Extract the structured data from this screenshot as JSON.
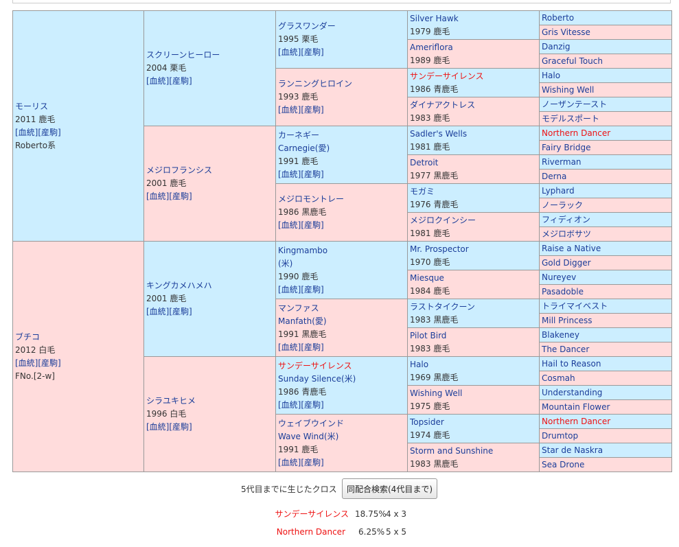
{
  "links": {
    "bloodline": "[血統]",
    "foal": "[産駒]"
  },
  "gen1": [
    {
      "name": "モーリス",
      "birth": "2011 鹿毛",
      "extra": "Roberto系",
      "sex": "m"
    },
    {
      "name": "ブチコ",
      "birth": "2012 白毛",
      "extra": "FNo.[2-w]",
      "sex": "f"
    }
  ],
  "gen2": [
    {
      "name": "スクリーンヒーロー",
      "birth": "2004 栗毛",
      "sex": "m"
    },
    {
      "name": "メジロフランシス",
      "birth": "2001 鹿毛",
      "sex": "f"
    },
    {
      "name": "キングカメハメハ",
      "birth": "2001 鹿毛",
      "sex": "m"
    },
    {
      "name": "シラユキヒメ",
      "birth": "1996 白毛",
      "sex": "f"
    }
  ],
  "gen3": [
    {
      "name": "グラスワンダー",
      "birth": "1995 栗毛",
      "sex": "m"
    },
    {
      "name": "ランニングヒロイン",
      "birth": "1993 鹿毛",
      "sex": "f"
    },
    {
      "name": "カーネギー",
      "name2": "Carnegie(愛)",
      "birth": "1991 鹿毛",
      "sex": "m"
    },
    {
      "name": "メジロモントレー",
      "birth": "1986 黒鹿毛",
      "sex": "f"
    },
    {
      "name": "Kingmambo",
      "name2": "(米)",
      "birth": "1990 鹿毛",
      "sex": "m"
    },
    {
      "name": "マンファス",
      "name2": "Manfath(愛)",
      "birth": "1991 黒鹿毛",
      "sex": "f"
    },
    {
      "name": "サンデーサイレンス",
      "name2": "Sunday Silence(米)",
      "birth": "1986 青鹿毛",
      "sex": "m",
      "cross": true
    },
    {
      "name": "ウェイブウインド",
      "name2": "Wave Wind(米)",
      "birth": "1991 鹿毛",
      "sex": "f"
    }
  ],
  "gen4": [
    {
      "name": "Silver Hawk",
      "birth": "1979 鹿毛",
      "sex": "m"
    },
    {
      "name": "Ameriflora",
      "birth": "1989 鹿毛",
      "sex": "f"
    },
    {
      "name": "サンデーサイレンス",
      "birth": "1986 青鹿毛",
      "sex": "m",
      "cross": true
    },
    {
      "name": "ダイナアクトレス",
      "birth": "1983 鹿毛",
      "sex": "f"
    },
    {
      "name": "Sadler's Wells",
      "birth": "1981 鹿毛",
      "sex": "m"
    },
    {
      "name": "Detroit",
      "birth": "1977 黒鹿毛",
      "sex": "f"
    },
    {
      "name": "モガミ",
      "birth": "1976 青鹿毛",
      "sex": "m"
    },
    {
      "name": "メジロクインシー",
      "birth": "1981 鹿毛",
      "sex": "f"
    },
    {
      "name": "Mr. Prospector",
      "birth": "1970 鹿毛",
      "sex": "m"
    },
    {
      "name": "Miesque",
      "birth": "1984 鹿毛",
      "sex": "f"
    },
    {
      "name": "ラストタイクーン",
      "birth": "1983 黒鹿毛",
      "sex": "m"
    },
    {
      "name": "Pilot Bird",
      "birth": "1983 鹿毛",
      "sex": "f"
    },
    {
      "name": "Halo",
      "birth": "1969 黒鹿毛",
      "sex": "m"
    },
    {
      "name": "Wishing Well",
      "birth": "1975 鹿毛",
      "sex": "f"
    },
    {
      "name": "Topsider",
      "birth": "1974 鹿毛",
      "sex": "m"
    },
    {
      "name": "Storm and Sunshine",
      "birth": "1983 黒鹿毛",
      "sex": "f"
    }
  ],
  "gen5": [
    {
      "name": "Roberto",
      "sex": "m"
    },
    {
      "name": "Gris Vitesse",
      "sex": "f"
    },
    {
      "name": "Danzig",
      "sex": "m"
    },
    {
      "name": "Graceful Touch",
      "sex": "f"
    },
    {
      "name": "Halo",
      "sex": "m"
    },
    {
      "name": "Wishing Well",
      "sex": "f"
    },
    {
      "name": "ノーザンテースト",
      "sex": "m"
    },
    {
      "name": "モデルスポート",
      "sex": "f"
    },
    {
      "name": "Northern Dancer",
      "sex": "m",
      "cross": true
    },
    {
      "name": "Fairy Bridge",
      "sex": "f"
    },
    {
      "name": "Riverman",
      "sex": "m"
    },
    {
      "name": "Derna",
      "sex": "f"
    },
    {
      "name": "Lyphard",
      "sex": "m"
    },
    {
      "name": "ノーラック",
      "sex": "f"
    },
    {
      "name": "フィディオン",
      "sex": "m"
    },
    {
      "name": "メジロボサツ",
      "sex": "f"
    },
    {
      "name": "Raise a Native",
      "sex": "m"
    },
    {
      "name": "Gold Digger",
      "sex": "f"
    },
    {
      "name": "Nureyev",
      "sex": "m"
    },
    {
      "name": "Pasadoble",
      "sex": "f"
    },
    {
      "name": "トライマイベスト",
      "sex": "m"
    },
    {
      "name": "Mill Princess",
      "sex": "f"
    },
    {
      "name": "Blakeney",
      "sex": "m"
    },
    {
      "name": "The Dancer",
      "sex": "f"
    },
    {
      "name": "Hail to Reason",
      "sex": "m"
    },
    {
      "name": "Cosmah",
      "sex": "f"
    },
    {
      "name": "Understanding",
      "sex": "m"
    },
    {
      "name": "Mountain Flower",
      "sex": "f"
    },
    {
      "name": "Northern Dancer",
      "sex": "m",
      "cross": true
    },
    {
      "name": "Drumtop",
      "sex": "f"
    },
    {
      "name": "Star de Naskra",
      "sex": "m"
    },
    {
      "name": "Sea Drone",
      "sex": "f"
    }
  ],
  "cross": {
    "heading": "5代目までに生じたクロス",
    "button": "同配合検索(4代目まで)",
    "items": [
      {
        "name": "サンデーサイレンス",
        "percent": "18.75%",
        "gens": "4 x 3"
      },
      {
        "name": "Northern Dancer",
        "percent": "6.25%",
        "gens": "5 x 5"
      }
    ]
  }
}
